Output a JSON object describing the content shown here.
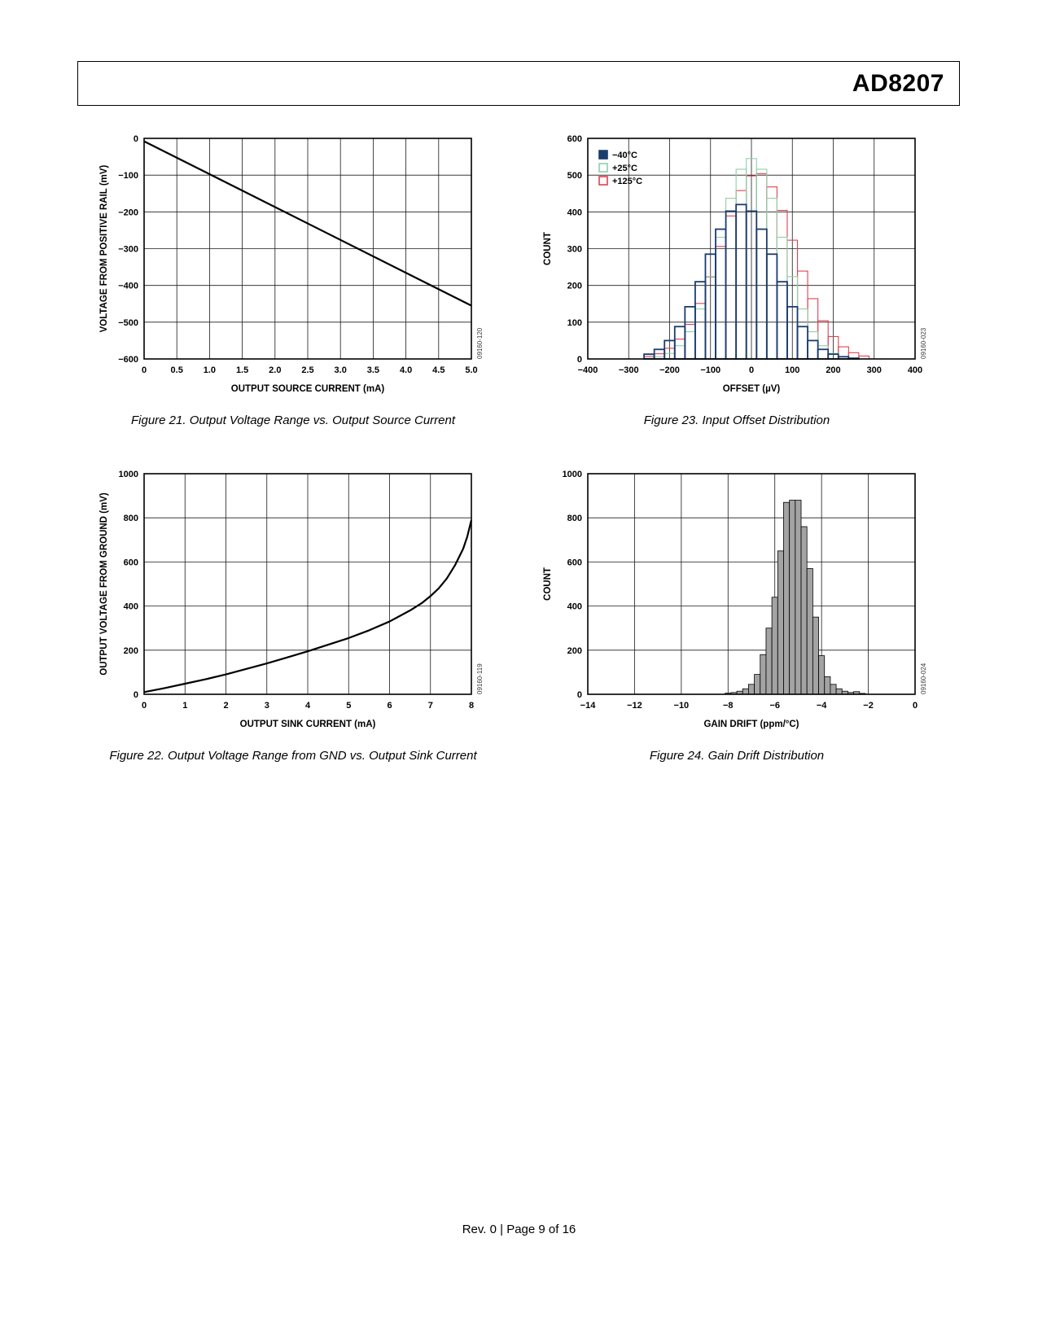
{
  "page": {
    "header": {
      "part_number": "AD8207"
    },
    "footer": {
      "text": "Rev. 0 | Page 9 of 16"
    }
  },
  "chart_data": [
    {
      "id": "figure-21",
      "type": "line",
      "title": "Figure 21. Output Voltage Range vs. Output Source Current",
      "xlabel": "OUTPUT SOURCE CURRENT (mA)",
      "ylabel": "VOLTAGE FROM POSITIVE RAIL (mV)",
      "xlim": [
        0,
        5
      ],
      "ylim": [
        -600,
        0
      ],
      "xticks": [
        0,
        0.5,
        1,
        1.5,
        2,
        2.5,
        3,
        3.5,
        4,
        4.5,
        5
      ],
      "xtick_labels": [
        "0",
        "0.5",
        "1.0",
        "1.5",
        "2.0",
        "2.5",
        "3.0",
        "3.5",
        "4.0",
        "4.5",
        "5.0"
      ],
      "yticks": [
        0,
        -100,
        -200,
        -300,
        -400,
        -500,
        -600
      ],
      "ytick_labels": [
        "0",
        "−100",
        "−200",
        "−300",
        "−400",
        "−500",
        "−600"
      ],
      "grid": true,
      "watermark": "09160-120",
      "series": [
        {
          "name": "output-voltage",
          "color": "#000000",
          "width": 2.2,
          "points": [
            [
              0,
              -8
            ],
            [
              5,
              -455
            ]
          ]
        }
      ]
    },
    {
      "id": "figure-23",
      "type": "histogram-outline",
      "title": "Figure 23. Input Offset Distribution",
      "xlabel": "OFFSET (µV)",
      "ylabel": "COUNT",
      "xlim": [
        -400,
        400
      ],
      "ylim": [
        0,
        600
      ],
      "xticks": [
        -400,
        -300,
        -200,
        -100,
        0,
        100,
        200,
        300,
        400
      ],
      "xtick_labels": [
        "−400",
        "−300",
        "−200",
        "−100",
        "0",
        "100",
        "200",
        "300",
        "400"
      ],
      "yticks": [
        0,
        100,
        200,
        300,
        400,
        500,
        600
      ],
      "grid": true,
      "bin_step": 25,
      "watermark": "09160-023",
      "legend": {
        "position": "top-left",
        "entries": [
          {
            "label": "−40°C",
            "color": "#1b3c6e",
            "filled": true
          },
          {
            "label": "+25°C",
            "color": "#8fcfa8",
            "filled": false
          },
          {
            "label": "+125°C",
            "color": "#e2404e",
            "filled": false
          }
        ]
      },
      "series": [
        {
          "name": "+125°C",
          "color": "#e2404e",
          "width": 1.1,
          "bin_start": -250,
          "counts": [
            7,
            14,
            29,
            54,
            94,
            151,
            223,
            306,
            389,
            458,
            498,
            504,
            468,
            404,
            323,
            239,
            164,
            104,
            61,
            33,
            17,
            8
          ]
        },
        {
          "name": "+25°C",
          "color": "#8fcfa8",
          "width": 1.1,
          "bin_start": -250,
          "counts": [
            2,
            6,
            15,
            36,
            74,
            136,
            224,
            331,
            437,
            516,
            545,
            516,
            437,
            331,
            224,
            136,
            74,
            36,
            15,
            6,
            2
          ]
        },
        {
          "name": "−40°C",
          "color": "#1b3c6e",
          "width": 1.8,
          "bin_start": -250,
          "counts": [
            13,
            26,
            50,
            88,
            142,
            210,
            285,
            353,
            402,
            420,
            402,
            353,
            285,
            210,
            142,
            88,
            50,
            26,
            13,
            6,
            2
          ]
        }
      ]
    },
    {
      "id": "figure-22",
      "type": "line",
      "title": "Figure 22. Output Voltage Range from GND vs. Output Sink Current",
      "xlabel": "OUTPUT SINK CURRENT (mA)",
      "ylabel": "OUTPUT VOLTAGE FROM GROUND (mV)",
      "xlim": [
        0,
        8
      ],
      "ylim": [
        0,
        1000
      ],
      "xticks": [
        0,
        1,
        2,
        3,
        4,
        5,
        6,
        7,
        8
      ],
      "xtick_labels": [
        "0",
        "1",
        "2",
        "3",
        "4",
        "5",
        "6",
        "7",
        "8"
      ],
      "yticks": [
        0,
        200,
        400,
        600,
        800,
        1000
      ],
      "ytick_labels": [
        "0",
        "200",
        "400",
        "600",
        "800",
        "1000"
      ],
      "grid": true,
      "watermark": "09160-119",
      "series": [
        {
          "name": "output-voltage",
          "color": "#000000",
          "width": 2.2,
          "points": [
            [
              0,
              10
            ],
            [
              0.5,
              28
            ],
            [
              1,
              48
            ],
            [
              1.5,
              68
            ],
            [
              2,
              90
            ],
            [
              2.5,
              115
            ],
            [
              3,
              140
            ],
            [
              3.5,
              167
            ],
            [
              4,
              195
            ],
            [
              4.5,
              225
            ],
            [
              5,
              255
            ],
            [
              5.5,
              290
            ],
            [
              6,
              330
            ],
            [
              6.5,
              380
            ],
            [
              6.8,
              415
            ],
            [
              7,
              445
            ],
            [
              7.2,
              480
            ],
            [
              7.4,
              525
            ],
            [
              7.6,
              585
            ],
            [
              7.8,
              660
            ],
            [
              7.9,
              715
            ],
            [
              8,
              790
            ]
          ]
        }
      ]
    },
    {
      "id": "figure-24",
      "type": "histogram-bars",
      "title": "Figure 24. Gain Drift Distribution",
      "xlabel": "GAIN DRIFT (ppm/°C)",
      "ylabel": "COUNT",
      "xlim": [
        -14,
        0
      ],
      "ylim": [
        0,
        1000
      ],
      "xticks": [
        -14,
        -12,
        -10,
        -8,
        -6,
        -4,
        -2,
        0
      ],
      "xtick_labels": [
        "−14",
        "−12",
        "−10",
        "−8",
        "−6",
        "−4",
        "−2",
        "0"
      ],
      "yticks": [
        0,
        200,
        400,
        600,
        800,
        1000
      ],
      "ytick_labels": [
        "0",
        "200",
        "400",
        "600",
        "800",
        "1000"
      ],
      "grid": true,
      "bin_step": 0.25,
      "watermark": "09160-024",
      "series": [
        {
          "name": "gain-drift",
          "color": "#000000",
          "fill": "#a3a3a3",
          "width": 0.8,
          "bin_start": -8,
          "counts": [
            5,
            8,
            14,
            25,
            45,
            90,
            180,
            300,
            440,
            650,
            870,
            880,
            880,
            760,
            570,
            350,
            175,
            80,
            45,
            25,
            14,
            8,
            12,
            4
          ]
        }
      ]
    }
  ]
}
